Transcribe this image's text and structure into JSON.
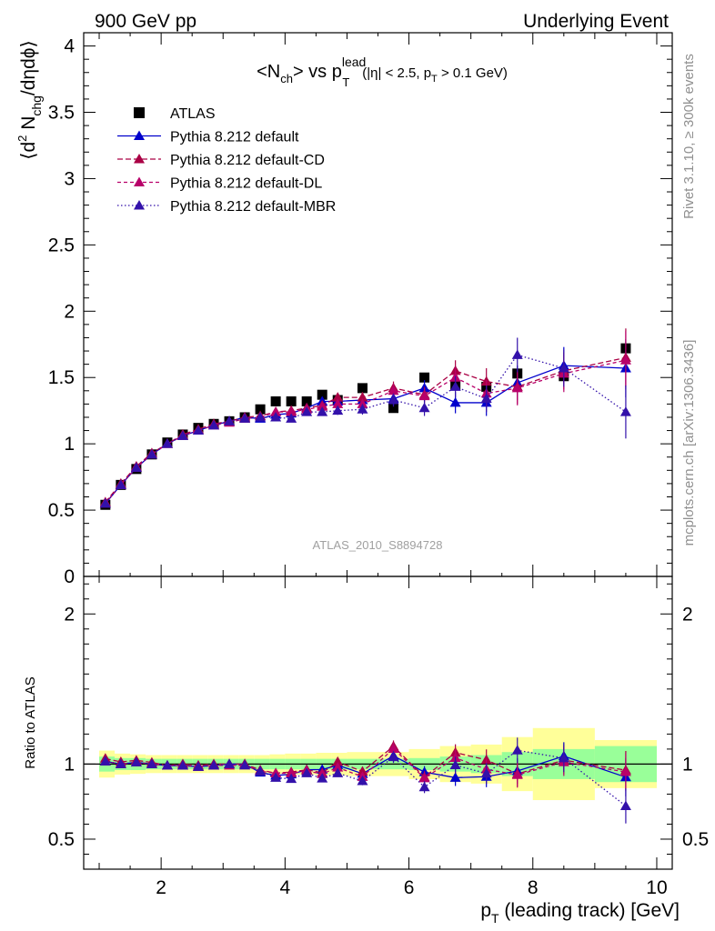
{
  "header": {
    "left": "900 GeV pp",
    "right": "Underlying Event"
  },
  "side_labels": {
    "rivet": "Rivet 3.1.10, ≥ 300k events",
    "mcplots": "mcplots.cern.ch [arXiv:1306.3436]"
  },
  "watermark": "ATLAS_2010_S8894728",
  "chart_data": {
    "type": "scatter",
    "title": {
      "pre": "<N",
      "sub1": "ch",
      "mid": "> vs p",
      "sup": "lead",
      "sub2": "T",
      "cond_pre": "(|η| < 2.5, p",
      "cond_sub": "T",
      "cond_post": " > 0.1 GeV)"
    },
    "ylabel": {
      "pre": "⟨d",
      "sup": "2",
      "mid": " N",
      "sub": "chg",
      "post": "/dηdϕ⟩"
    },
    "ratio_ylabel": "Ratio to ATLAS",
    "xlabel": {
      "pre": "p",
      "sub": "T",
      "post": " (leading track) [GeV]"
    },
    "xlim": [
      0.75,
      10.25
    ],
    "ylim": [
      0,
      4.1
    ],
    "ratio_ylim": [
      0.3,
      2.25
    ],
    "x_ticks": [
      2,
      4,
      6,
      8,
      10
    ],
    "y_ticks": [
      {
        "v": 0.5,
        "label": "0.5"
      },
      {
        "v": 1,
        "label": "1"
      },
      {
        "v": 1.5,
        "label": "1.5"
      },
      {
        "v": 2,
        "label": "2"
      },
      {
        "v": 2.5,
        "label": "2.5"
      },
      {
        "v": 3,
        "label": "3"
      },
      {
        "v": 3.5,
        "label": "3.5"
      },
      {
        "v": 4,
        "label": "4"
      },
      {
        "v": 0,
        "label": "0"
      }
    ],
    "ratio_y_ticks": [
      {
        "v": 0.5,
        "label": "0.5"
      },
      {
        "v": 1,
        "label": "1"
      },
      {
        "v": 2,
        "label": "2"
      }
    ],
    "x": [
      1.1,
      1.35,
      1.6,
      1.85,
      2.1,
      2.35,
      2.6,
      2.85,
      3.1,
      3.35,
      3.6,
      3.85,
      4.1,
      4.35,
      4.6,
      4.85,
      5.25,
      5.75,
      6.25,
      6.75,
      7.25,
      7.75,
      8.5,
      9.5
    ],
    "bin_edges": [
      1.0,
      1.25,
      1.5,
      1.75,
      2.0,
      2.25,
      2.5,
      2.75,
      3.0,
      3.25,
      3.5,
      3.75,
      4.0,
      4.25,
      4.5,
      4.75,
      5.0,
      5.5,
      6.0,
      6.5,
      7.0,
      7.5,
      8.0,
      9.0,
      10.0
    ],
    "series": [
      {
        "name": "ATLAS",
        "color": "#000000",
        "marker": "square",
        "values": [
          0.54,
          0.69,
          0.81,
          0.92,
          1.01,
          1.07,
          1.12,
          1.15,
          1.17,
          1.2,
          1.26,
          1.32,
          1.32,
          1.32,
          1.37,
          1.33,
          1.42,
          1.27,
          1.5,
          1.44,
          1.43,
          1.53,
          1.51,
          1.72
        ]
      },
      {
        "name": "Pythia 8.212 default",
        "color": "#0000cc",
        "marker": "triangle",
        "dash": "",
        "values": [
          0.55,
          0.69,
          0.82,
          0.92,
          1.0,
          1.06,
          1.1,
          1.14,
          1.17,
          1.2,
          1.19,
          1.22,
          1.23,
          1.27,
          1.32,
          1.32,
          1.33,
          1.34,
          1.42,
          1.31,
          1.31,
          1.46,
          1.59,
          1.57
        ],
        "errors": [
          0.005,
          0.005,
          0.006,
          0.007,
          0.008,
          0.009,
          0.01,
          0.012,
          0.013,
          0.015,
          0.017,
          0.02,
          0.022,
          0.025,
          0.028,
          0.032,
          0.04,
          0.05,
          0.06,
          0.08,
          0.1,
          0.13,
          0.14,
          0.22
        ]
      },
      {
        "name": "Pythia 8.212 default-CD",
        "color": "#aa0044",
        "marker": "triangle",
        "dash": "6,3",
        "values": [
          0.56,
          0.7,
          0.83,
          0.93,
          1.0,
          1.07,
          1.11,
          1.15,
          1.17,
          1.2,
          1.21,
          1.24,
          1.25,
          1.27,
          1.29,
          1.35,
          1.35,
          1.42,
          1.37,
          1.55,
          1.47,
          1.43,
          1.55,
          1.65
        ],
        "errors": [
          0.005,
          0.005,
          0.006,
          0.007,
          0.008,
          0.009,
          0.01,
          0.012,
          0.013,
          0.015,
          0.017,
          0.02,
          0.022,
          0.025,
          0.028,
          0.032,
          0.04,
          0.05,
          0.06,
          0.08,
          0.1,
          0.13,
          0.14,
          0.22
        ]
      },
      {
        "name": "Pythia 8.212 default-DL",
        "color": "#b8006a",
        "marker": "triangle",
        "dash": "4,3",
        "values": [
          0.55,
          0.69,
          0.82,
          0.92,
          1.0,
          1.06,
          1.1,
          1.14,
          1.16,
          1.19,
          1.2,
          1.24,
          1.24,
          1.26,
          1.28,
          1.3,
          1.3,
          1.4,
          1.36,
          1.5,
          1.38,
          1.42,
          1.53,
          1.63
        ],
        "errors": [
          0.005,
          0.005,
          0.006,
          0.007,
          0.008,
          0.009,
          0.01,
          0.012,
          0.013,
          0.015,
          0.017,
          0.02,
          0.022,
          0.025,
          0.028,
          0.032,
          0.04,
          0.05,
          0.06,
          0.08,
          0.1,
          0.13,
          0.14,
          0.22
        ]
      },
      {
        "name": "Pythia 8.212 default-MBR",
        "color": "#3311aa",
        "marker": "triangle",
        "dash": "1.5,2.5",
        "values": [
          0.55,
          0.69,
          0.82,
          0.92,
          1.0,
          1.06,
          1.1,
          1.14,
          1.17,
          1.19,
          1.2,
          1.2,
          1.19,
          1.24,
          1.24,
          1.25,
          1.26,
          1.33,
          1.27,
          1.43,
          1.34,
          1.67,
          1.57,
          1.24
        ],
        "errors": [
          0.005,
          0.005,
          0.006,
          0.007,
          0.008,
          0.009,
          0.01,
          0.012,
          0.013,
          0.015,
          0.017,
          0.02,
          0.022,
          0.025,
          0.028,
          0.032,
          0.04,
          0.05,
          0.06,
          0.08,
          0.1,
          0.13,
          0.14,
          0.2
        ]
      }
    ],
    "band_green": [
      0.05,
      0.04,
      0.04,
      0.035,
      0.035,
      0.035,
      0.035,
      0.035,
      0.035,
      0.035,
      0.035,
      0.035,
      0.035,
      0.035,
      0.035,
      0.035,
      0.035,
      0.035,
      0.04,
      0.05,
      0.06,
      0.08,
      0.1,
      0.12
    ],
    "band_yellow": [
      0.09,
      0.07,
      0.065,
      0.06,
      0.06,
      0.06,
      0.06,
      0.06,
      0.06,
      0.06,
      0.06,
      0.065,
      0.07,
      0.07,
      0.075,
      0.075,
      0.08,
      0.08,
      0.1,
      0.12,
      0.13,
      0.18,
      0.24,
      0.16
    ]
  }
}
